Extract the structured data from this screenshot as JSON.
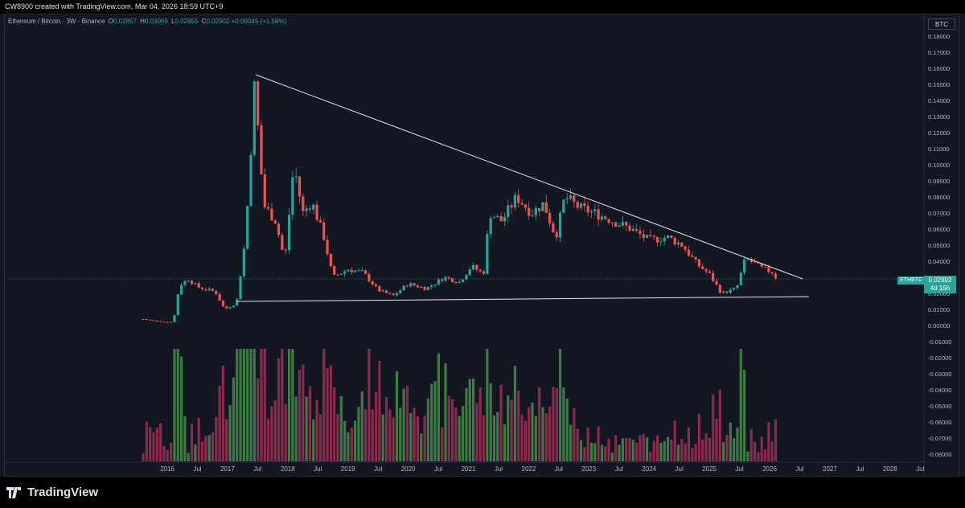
{
  "header": {
    "attribution": "CW8900 created with TradingView.com, Mar 04, 2026 18:59 UTC+9"
  },
  "legend": {
    "symbol": "Ethereum / Bitcoin · 3W · Binance",
    "o_key": "O",
    "o_val": "0.02857",
    "h_key": "H",
    "h_val": "0.03069",
    "l_key": "L",
    "l_val": "0.02855",
    "c_key": "C",
    "c_val": "0.02902",
    "change": "+0.00045 (+1.58%)"
  },
  "currency_button": "BTC",
  "price_label": {
    "ticker": "ETHBTC",
    "price": "0.02902",
    "countdown": "4d 15h"
  },
  "brand": "TradingView",
  "colors": {
    "up": "#26a69a",
    "down": "#ef5350",
    "vol_up": "#3d7a44",
    "vol_down": "#8b2a4d",
    "bg": "#131722"
  },
  "chart_data": {
    "type": "candlestick",
    "y_axis_ticks": [
      "0.18000",
      "0.17000",
      "0.16000",
      "0.15000",
      "0.14000",
      "0.13000",
      "0.12000",
      "0.11000",
      "0.10000",
      "0.09000",
      "0.08000",
      "0.07000",
      "0.06000",
      "0.05000",
      "0.04000",
      "0.03000",
      "0.02000",
      "0.01000",
      "0.00000",
      "-0.01000",
      "-0.02000",
      "-0.03000",
      "-0.04000",
      "-0.05000",
      "-0.06000",
      "-0.07000",
      "-0.08000"
    ],
    "ylim": [
      -0.08,
      0.18
    ],
    "x_axis_ticks": [
      "2016",
      "Jul",
      "2017",
      "Jul",
      "2018",
      "Jul",
      "2019",
      "Jul",
      "2020",
      "Jul",
      "2021",
      "Jul",
      "2022",
      "Jul",
      "2023",
      "Jul",
      "2024",
      "Jul",
      "2025",
      "Jul",
      "2026",
      "Jul",
      "2027",
      "Jul",
      "2028",
      "Jul"
    ],
    "anchors": [
      {
        "t": 2015.6,
        "v": 0.004
      },
      {
        "t": 2015.85,
        "v": 0.0025
      },
      {
        "t": 2016.1,
        "v": 0.002
      },
      {
        "t": 2016.2,
        "v": 0.025
      },
      {
        "t": 2016.35,
        "v": 0.029
      },
      {
        "t": 2016.5,
        "v": 0.024
      },
      {
        "t": 2016.8,
        "v": 0.021
      },
      {
        "t": 2016.95,
        "v": 0.01
      },
      {
        "t": 2017.15,
        "v": 0.014
      },
      {
        "t": 2017.3,
        "v": 0.055
      },
      {
        "t": 2017.45,
        "v": 0.15
      },
      {
        "t": 2017.6,
        "v": 0.075
      },
      {
        "t": 2017.8,
        "v": 0.065
      },
      {
        "t": 2017.95,
        "v": 0.04
      },
      {
        "t": 2018.1,
        "v": 0.1
      },
      {
        "t": 2018.25,
        "v": 0.07
      },
      {
        "t": 2018.4,
        "v": 0.077
      },
      {
        "t": 2018.6,
        "v": 0.055
      },
      {
        "t": 2018.75,
        "v": 0.03
      },
      {
        "t": 2019.0,
        "v": 0.035
      },
      {
        "t": 2019.25,
        "v": 0.033
      },
      {
        "t": 2019.5,
        "v": 0.022
      },
      {
        "t": 2019.75,
        "v": 0.0185
      },
      {
        "t": 2020.0,
        "v": 0.026
      },
      {
        "t": 2020.3,
        "v": 0.023
      },
      {
        "t": 2020.6,
        "v": 0.03
      },
      {
        "t": 2020.85,
        "v": 0.027
      },
      {
        "t": 2021.05,
        "v": 0.037
      },
      {
        "t": 2021.25,
        "v": 0.032
      },
      {
        "t": 2021.35,
        "v": 0.07
      },
      {
        "t": 2021.55,
        "v": 0.065
      },
      {
        "t": 2021.8,
        "v": 0.08
      },
      {
        "t": 2022.05,
        "v": 0.07
      },
      {
        "t": 2022.25,
        "v": 0.076
      },
      {
        "t": 2022.45,
        "v": 0.055
      },
      {
        "t": 2022.6,
        "v": 0.08
      },
      {
        "t": 2022.85,
        "v": 0.073
      },
      {
        "t": 2023.1,
        "v": 0.07
      },
      {
        "t": 2023.4,
        "v": 0.065
      },
      {
        "t": 2023.7,
        "v": 0.06
      },
      {
        "t": 2024.0,
        "v": 0.053
      },
      {
        "t": 2024.3,
        "v": 0.055
      },
      {
        "t": 2024.55,
        "v": 0.05
      },
      {
        "t": 2024.8,
        "v": 0.038
      },
      {
        "t": 2025.0,
        "v": 0.032
      },
      {
        "t": 2025.2,
        "v": 0.02
      },
      {
        "t": 2025.45,
        "v": 0.023
      },
      {
        "t": 2025.6,
        "v": 0.042
      },
      {
        "t": 2025.85,
        "v": 0.036
      },
      {
        "t": 2026.05,
        "v": 0.033
      },
      {
        "t": 2026.12,
        "v": 0.029
      }
    ],
    "resistance_line": [
      {
        "t": 2017.47,
        "v": 0.156
      },
      {
        "t": 2026.55,
        "v": 0.029
      }
    ],
    "support_line": [
      {
        "t": 2017.15,
        "v": 0.015
      },
      {
        "t": 2026.65,
        "v": 0.018
      }
    ],
    "last_price": 0.02902
  }
}
